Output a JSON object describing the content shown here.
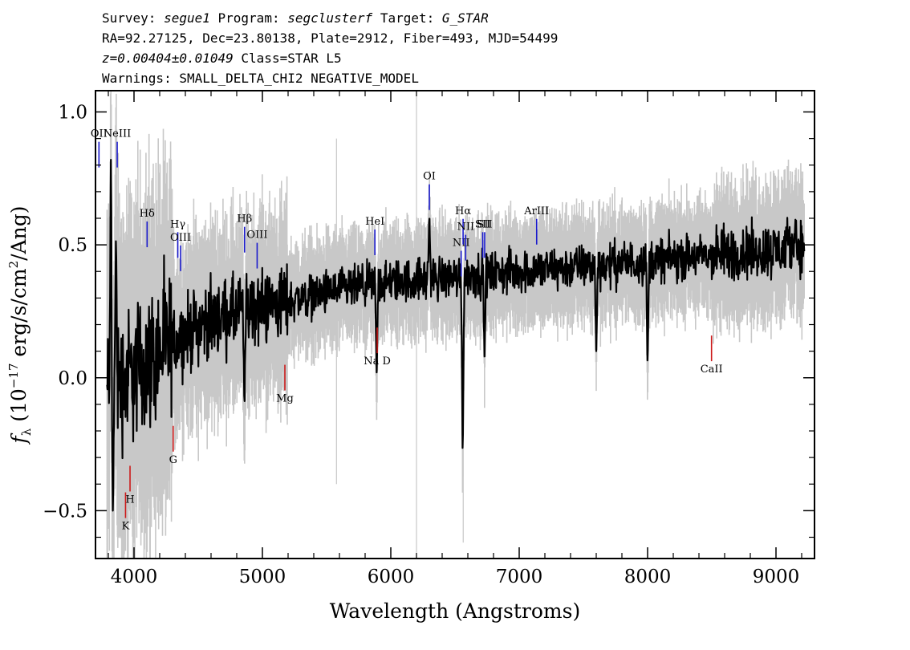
{
  "header": {
    "survey_label": "Survey:",
    "survey": "segue1",
    "program_label": "Program:",
    "program": "segclusterf",
    "target_label": "Target:",
    "target": "G_STAR",
    "line2": "RA=92.27125, Dec=23.80138, Plate=2912, Fiber=493, MJD=54499",
    "z": "z=0.00404±0.01049",
    "class": "Class=STAR L5",
    "warnings": "Warnings: SMALL_DELTA_CHI2 NEGATIVE_MODEL"
  },
  "chart_data": {
    "type": "line",
    "xlabel": "Wavelength (Angstroms)",
    "ylabel_prefix": "f",
    "ylabel_sub": "λ",
    "ylabel_rest": " (10",
    "ylabel_exp": "−17",
    "ylabel_units": " erg/s/cm",
    "ylabel_units_exp": "2",
    "ylabel_end": "/Ang)",
    "xlim": [
      3700,
      9300
    ],
    "ylim": [
      -0.68,
      1.08
    ],
    "x_ticks": [
      4000,
      5000,
      6000,
      7000,
      8000,
      9000
    ],
    "x_tick_labels": [
      "4000",
      "5000",
      "6000",
      "7000",
      "8000",
      "9000"
    ],
    "y_ticks": [
      -0.5,
      0.0,
      0.5,
      1.0
    ],
    "y_tick_labels": [
      "−0.5",
      "0.0",
      "0.5",
      "1.0"
    ],
    "colors": {
      "flux": "#000000",
      "error": "#c8c8c8",
      "emission": "#1a1acc",
      "absorption": "#cc1a1a"
    },
    "continuum": [
      [
        3800,
        -0.05
      ],
      [
        4000,
        0.02
      ],
      [
        4200,
        0.1
      ],
      [
        4500,
        0.2
      ],
      [
        5000,
        0.27
      ],
      [
        5500,
        0.32
      ],
      [
        6000,
        0.36
      ],
      [
        6500,
        0.38
      ],
      [
        7000,
        0.4
      ],
      [
        7500,
        0.42
      ],
      [
        8000,
        0.44
      ],
      [
        8500,
        0.46
      ],
      [
        9000,
        0.48
      ],
      [
        9220,
        0.5
      ]
    ],
    "features": [
      {
        "x": 3820,
        "y": 0.82,
        "note": "spike"
      },
      {
        "x": 3835,
        "y": -0.5,
        "note": "dip"
      },
      {
        "x": 3860,
        "y": 0.55,
        "note": "spike"
      },
      {
        "x": 4860,
        "y": -0.11,
        "note": "dip"
      },
      {
        "x": 5890,
        "y": 0.02,
        "note": "dip"
      },
      {
        "x": 6300,
        "y": 0.62,
        "note": "OI sky"
      },
      {
        "x": 6560,
        "y": -0.32,
        "note": "Halpha absorption"
      },
      {
        "x": 6730,
        "y": 0.08,
        "note": "dip"
      },
      {
        "x": 7600,
        "y": 0.1,
        "note": "telluric"
      },
      {
        "x": 8000,
        "y": 0.03,
        "note": "dip"
      },
      {
        "x": 9150,
        "y": 0.6,
        "note": "spike"
      }
    ],
    "emission_lines": [
      {
        "label": "OII",
        "x": 3727,
        "y": 0.93
      },
      {
        "label": "NeIII",
        "x": 3869,
        "y": 0.93
      },
      {
        "label": "Hδ",
        "x": 4102,
        "y": 0.63
      },
      {
        "label": "Hγ",
        "x": 4341,
        "y": 0.59
      },
      {
        "label": "OIII",
        "x": 4363,
        "y": 0.54
      },
      {
        "label": "Hβ",
        "x": 4861,
        "y": 0.61
      },
      {
        "label": "OIII",
        "x": 4959,
        "y": 0.55
      },
      {
        "label": "HeI",
        "x": 5876,
        "y": 0.6
      },
      {
        "label": "OI",
        "x": 6300,
        "y": 0.77
      },
      {
        "label": "NII",
        "x": 6548,
        "y": 0.52
      },
      {
        "label": "Hα",
        "x": 6563,
        "y": 0.64
      },
      {
        "label": "NII",
        "x": 6583,
        "y": 0.58
      },
      {
        "label": "SII",
        "x": 6716,
        "y": 0.59
      },
      {
        "label": "SII",
        "x": 6731,
        "y": 0.59
      },
      {
        "label": "ArIII",
        "x": 7136,
        "y": 0.64
      }
    ],
    "absorption_lines": [
      {
        "label": "K",
        "x": 3934,
        "y": -0.57
      },
      {
        "label": "H",
        "x": 3969,
        "y": -0.47
      },
      {
        "label": "G",
        "x": 4305,
        "y": -0.32
      },
      {
        "label": "Mg",
        "x": 5175,
        "y": -0.09
      },
      {
        "label": "Na D",
        "x": 5894,
        "y": 0.05
      },
      {
        "label": "CaII",
        "x": 8498,
        "y": 0.02
      }
    ]
  }
}
